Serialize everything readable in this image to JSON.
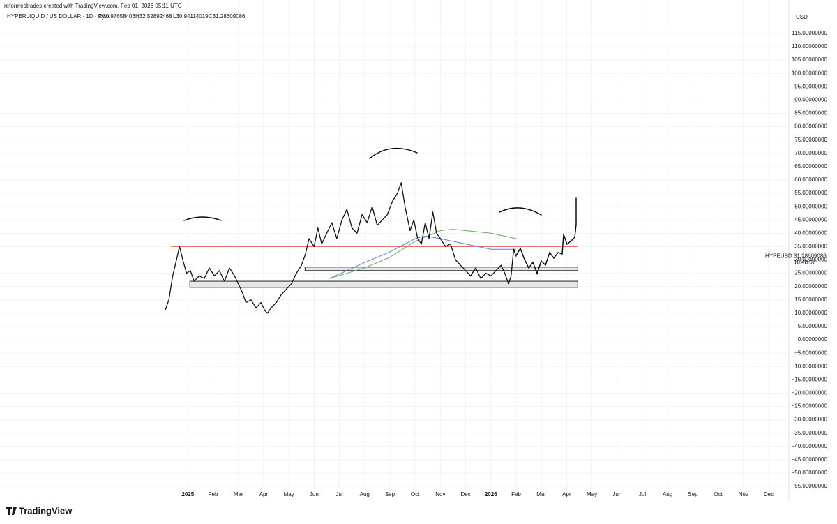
{
  "header": {
    "attribution": "reformedtrades created with TradingView.com, Feb 01, 2026 05:11 UTC",
    "symbol_line": "HYPERLIQUID / US DOLLAR · 1D · Pyth",
    "open": "O30.97658406",
    "high": "H32.52892468",
    "low": "L30.94114019",
    "close": "C31.28609086"
  },
  "footer": {
    "logo": "TradingView"
  },
  "chart_data": {
    "type": "line",
    "currency": "USD",
    "grid": true,
    "color": "#111111",
    "x": [
      -0.9,
      -0.75,
      -0.6,
      -0.45,
      -0.33,
      -0.2,
      -0.05,
      0.1,
      0.25,
      0.45,
      0.65,
      0.85,
      1.05,
      1.25,
      1.45,
      1.65,
      1.85,
      2.0,
      2.15,
      2.3,
      2.5,
      2.7,
      2.9,
      3.05,
      3.15,
      3.3,
      3.5,
      3.7,
      3.9,
      4.1,
      4.3,
      4.5,
      4.65,
      4.8,
      5.0,
      5.15,
      5.3,
      5.5,
      5.7,
      5.9,
      6.1,
      6.3,
      6.5,
      6.7,
      6.9,
      7.1,
      7.3,
      7.5,
      7.7,
      7.9,
      8.1,
      8.3,
      8.45,
      8.6,
      8.8,
      8.95,
      9.1,
      9.25,
      9.4,
      9.55,
      9.7,
      9.85,
      10.0,
      10.2,
      10.4,
      10.6,
      10.8,
      11.0,
      11.2,
      11.4,
      11.6,
      11.8,
      12.0,
      12.2,
      12.4,
      12.55,
      12.7,
      12.8,
      12.9,
      13.0
    ],
    "values": [
      11,
      15,
      24,
      30,
      35,
      30,
      25,
      26,
      22,
      24,
      23,
      27,
      24,
      26,
      22,
      27,
      24,
      21,
      18,
      14,
      15,
      12,
      14,
      11,
      10,
      12,
      14,
      17,
      19,
      21,
      25,
      28,
      32,
      38,
      35,
      42,
      36,
      40,
      44,
      38,
      45,
      49,
      42,
      40,
      47,
      44,
      50,
      43,
      45,
      47,
      52,
      55,
      59,
      50,
      41,
      45,
      38,
      36,
      44,
      38,
      48,
      40,
      38,
      35,
      36,
      30,
      28,
      26,
      24,
      27,
      23,
      25,
      24,
      26,
      28,
      25,
      21,
      24,
      34,
      31.29
    ],
    "moving_averages": [
      {
        "color": "#5b7fd6",
        "x": [
          5.6,
          7,
          8,
          9,
          9.4,
          10,
          11,
          12,
          13
        ],
        "values": [
          23,
          29,
          33,
          38,
          39,
          38,
          36,
          34,
          34
        ]
      },
      {
        "color": "#6aaa5e",
        "x": [
          5.6,
          7,
          8,
          9,
          10,
          10.5,
          11,
          12,
          13
        ],
        "values": [
          23,
          27,
          31,
          37,
          41,
          41.5,
          41,
          40,
          38
        ]
      }
    ],
    "level": {
      "color": "#e35d5d",
      "value": 35,
      "x": [
        -0.67,
        15.44
      ]
    },
    "zones": [
      {
        "x": [
          0.08,
          15.44
        ],
        "y": [
          19.7,
          22
        ]
      },
      {
        "x": [
          4.64,
          15.44
        ],
        "y": [
          26,
          27.3
        ]
      }
    ],
    "last_price": {
      "symbol": "HYPEUSD",
      "value": 31.28609086,
      "countdown": "18:48:07"
    },
    "xlim": [
      -7.3,
      23.8
    ],
    "ylim": [
      -56,
      118
    ],
    "xticks": [
      {
        "value": 0,
        "label": "2025"
      },
      {
        "value": 1,
        "label": "Feb"
      },
      {
        "value": 2,
        "label": "Mar"
      },
      {
        "value": 3,
        "label": "Apr"
      },
      {
        "value": 4,
        "label": "May"
      },
      {
        "value": 5,
        "label": "Jun"
      },
      {
        "value": 6,
        "label": "Jul"
      },
      {
        "value": 7,
        "label": "Aug"
      },
      {
        "value": 8,
        "label": "Sep"
      },
      {
        "value": 9,
        "label": "Oct"
      },
      {
        "value": 10,
        "label": "Nov"
      },
      {
        "value": 11,
        "label": "Dec"
      },
      {
        "value": 12,
        "label": "2026"
      },
      {
        "value": 13,
        "label": "Feb"
      },
      {
        "value": 14,
        "label": "Mar"
      },
      {
        "value": 15,
        "label": "Apr"
      },
      {
        "value": 16,
        "label": "May"
      },
      {
        "value": 17,
        "label": "Jun"
      },
      {
        "value": 18,
        "label": "Jul"
      },
      {
        "value": 19,
        "label": "Aug"
      },
      {
        "value": 20,
        "label": "Sep"
      },
      {
        "value": 21,
        "label": "Oct"
      },
      {
        "value": 22,
        "label": "Nov"
      },
      {
        "value": 23,
        "label": "Dec"
      }
    ],
    "yticks": [
      {
        "value": 115,
        "label": "115.00000000"
      },
      {
        "value": 110,
        "label": "110.00000000"
      },
      {
        "value": 105,
        "label": "105.00000000"
      },
      {
        "value": 100,
        "label": "100.00000000"
      },
      {
        "value": 95,
        "label": "95.00000000"
      },
      {
        "value": 90,
        "label": "90.00000000"
      },
      {
        "value": 85,
        "label": "85.00000000"
      },
      {
        "value": 80,
        "label": "80.00000000"
      },
      {
        "value": 75,
        "label": "75.00000000"
      },
      {
        "value": 70,
        "label": "70.00000000"
      },
      {
        "value": 65,
        "label": "65.00000000"
      },
      {
        "value": 60,
        "label": "60.00000000"
      },
      {
        "value": 55,
        "label": "55.00000000"
      },
      {
        "value": 50,
        "label": "50.00000000"
      },
      {
        "value": 45,
        "label": "45.00000000"
      },
      {
        "value": 40,
        "label": "40.00000000"
      },
      {
        "value": 35,
        "label": "35.00000000"
      },
      {
        "value": 30,
        "label": "30.00000000"
      },
      {
        "value": 25,
        "label": "25.00000000"
      },
      {
        "value": 20,
        "label": "20.00000000"
      },
      {
        "value": 15,
        "label": "15.00000000"
      },
      {
        "value": 10,
        "label": "10.00000000"
      },
      {
        "value": 5,
        "label": "5.00000000"
      },
      {
        "value": 0,
        "label": "0.00000000"
      },
      {
        "value": -5,
        "label": "−5.00000000"
      },
      {
        "value": -10,
        "label": "−10.00000000"
      },
      {
        "value": -15,
        "label": "−15.00000000"
      },
      {
        "value": -20,
        "label": "−20.00000000"
      },
      {
        "value": -25,
        "label": "−25.00000000"
      },
      {
        "value": -30,
        "label": "−30.00000000"
      },
      {
        "value": -35,
        "label": "−35.00000000"
      },
      {
        "value": -40,
        "label": "−40.00000000"
      },
      {
        "value": -45,
        "label": "−45.00000000"
      },
      {
        "value": -50,
        "label": "−50.00000000"
      },
      {
        "value": -55,
        "label": "−55.00000000"
      }
    ]
  }
}
